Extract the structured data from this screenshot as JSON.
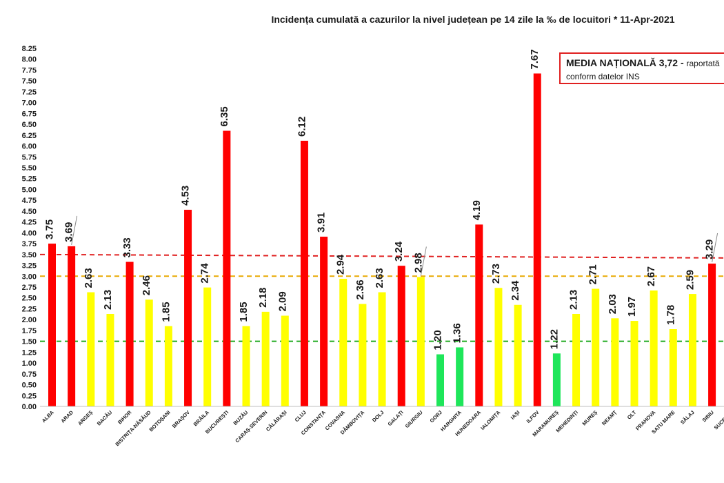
{
  "chart_data": {
    "type": "bar",
    "title": "Incidența cumulată a cazurilor la nivel județean pe 14 zile la ‰ de locuitori *   11-Apr-2021",
    "categories": [
      "ALBA",
      "ARAD",
      "ARGEȘ",
      "BACĂU",
      "BIHOR",
      "BISTRIȚA-NĂSĂUD",
      "BOTOȘANI",
      "BRAȘOV",
      "BRĂILA",
      "BUCUREȘTI",
      "BUZĂU",
      "CARAȘ-SEVERIN",
      "CĂLĂRAȘI",
      "CLUJ",
      "CONSTANȚA",
      "COVASNA",
      "DÂMBOVIȚA",
      "DOLJ",
      "GALAȚI",
      "GIURGIU",
      "GORJ",
      "HARGHITA",
      "HUNEDOARA",
      "IALOMIȚA",
      "IAȘI",
      "ILFOV",
      "MARAMUREȘ",
      "MEHEDINȚI",
      "MUREȘ",
      "NEAMȚ",
      "OLT",
      "PRAHOVA",
      "SATU MARE",
      "SĂLAJ",
      "SIBIU",
      "SUCEAVA"
    ],
    "values": [
      3.75,
      3.69,
      2.63,
      2.13,
      3.33,
      2.46,
      1.85,
      4.53,
      2.74,
      6.35,
      1.85,
      2.18,
      2.09,
      6.12,
      3.91,
      2.94,
      2.36,
      2.63,
      3.24,
      2.98,
      1.2,
      1.36,
      4.19,
      2.73,
      2.34,
      7.67,
      1.22,
      2.13,
      2.71,
      2.03,
      1.97,
      2.67,
      1.78,
      2.59,
      3.29,
      null
    ],
    "value_labels": [
      "3.75",
      "3.69",
      "2.63",
      "2.13",
      "3.33",
      "2.46",
      "1.85",
      "4.53",
      "2.74",
      "6.35",
      "1.85",
      "2.18",
      "2.09",
      "6.12",
      "3.91",
      "2.94",
      "2.36",
      "2.63",
      "3.24",
      "2.98",
      "1.20",
      "1.36",
      "4.19",
      "2.73",
      "2.34",
      "7.67",
      "1.22",
      "2.13",
      "2.71",
      "2.03",
      "1.97",
      "2.67",
      "1.78",
      "2.59",
      "3.29",
      ""
    ],
    "bar_colors": [
      "red",
      "red",
      "yellow",
      "yellow",
      "red",
      "yellow",
      "yellow",
      "red",
      "yellow",
      "red",
      "yellow",
      "yellow",
      "yellow",
      "red",
      "red",
      "yellow",
      "yellow",
      "yellow",
      "red",
      "yellow",
      "green",
      "green",
      "red",
      "yellow",
      "yellow",
      "red",
      "green",
      "yellow",
      "yellow",
      "yellow",
      "yellow",
      "yellow",
      "yellow",
      "yellow",
      "red",
      "red"
    ],
    "y_ticks": [
      "0.00",
      "0.25",
      "0.50",
      "0.75",
      "1.00",
      "1.25",
      "1.50",
      "1.75",
      "2.00",
      "2.25",
      "2.50",
      "2.75",
      "3.00",
      "3.25",
      "3.50",
      "3.75",
      "4.00",
      "4.25",
      "4.50",
      "4.75",
      "5.00",
      "5.25",
      "5.50",
      "5.75",
      "6.00",
      "6.25",
      "6.50",
      "6.75",
      "7.00",
      "7.25",
      "7.50",
      "7.75",
      "8.00",
      "8.25"
    ],
    "ylim": [
      0,
      8.25
    ],
    "reference_lines": [
      {
        "y": 3.5,
        "y_end": 3.42,
        "color": "#e02020",
        "style": "dashed"
      },
      {
        "y": 3.0,
        "color": "#e8a800",
        "style": "dashed"
      },
      {
        "y": 1.5,
        "color": "#22aa22",
        "style": "dashed"
      }
    ],
    "grid": false,
    "xlabel": "",
    "ylabel": ""
  },
  "note": {
    "line1_bold": "MEDIA NAȚIONALĂ  3,72 - ",
    "line1_rest": "raportată",
    "line2": "conform datelor INS"
  },
  "colors": {
    "red": "#ff0000",
    "yellow": "#ffff00",
    "green": "#1ee65a",
    "text": "#1a1a1a",
    "axis": "#bfbfbf"
  }
}
